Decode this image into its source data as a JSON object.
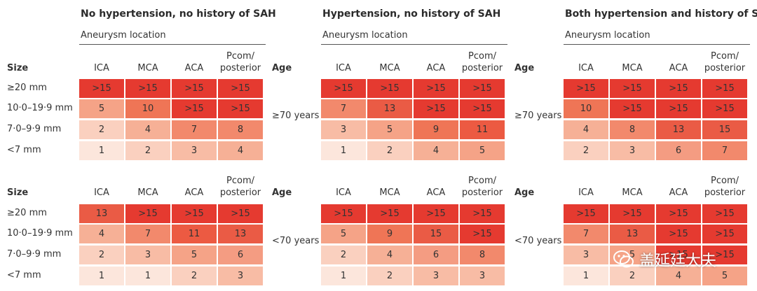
{
  "chart_data": {
    "type": "heatmap",
    "groups": [
      {
        "title": "No hypertension, no history of SAH",
        "subtitle": "Aneurysm location"
      },
      {
        "title": "Hypertension, no history of SAH",
        "subtitle": "Aneurysm location"
      },
      {
        "title": "Both hypertension and history of SAH",
        "subtitle": "Aneurysm location"
      }
    ],
    "columns": [
      "ICA",
      "MCA",
      "ACA",
      "Pcom/ posterior"
    ],
    "rows_header": "Size",
    "age_header": "Age",
    "sizes": [
      "≥20 mm",
      "10·0–19·9 mm",
      "7·0–9·9 mm",
      "<7 mm"
    ],
    "ages": [
      "≥70 years",
      "<70 years"
    ],
    "values": [
      [
        [
          [
            ">15",
            ">15",
            ">15",
            ">15"
          ],
          [
            "5",
            "10",
            ">15",
            ">15"
          ],
          [
            "2",
            "4",
            "7",
            "8"
          ],
          [
            "1",
            "2",
            "3",
            "4"
          ]
        ],
        [
          [
            ">15",
            ">15",
            ">15",
            ">15"
          ],
          [
            "7",
            "13",
            ">15",
            ">15"
          ],
          [
            "3",
            "5",
            "9",
            "11"
          ],
          [
            "1",
            "2",
            "4",
            "5"
          ]
        ],
        [
          [
            ">15",
            ">15",
            ">15",
            ">15"
          ],
          [
            "10",
            ">15",
            ">15",
            ">15"
          ],
          [
            "4",
            "8",
            "13",
            "15"
          ],
          [
            "2",
            "3",
            "6",
            "7"
          ]
        ]
      ],
      [
        [
          [
            "13",
            ">15",
            ">15",
            ">15"
          ],
          [
            "4",
            "7",
            "11",
            "13"
          ],
          [
            "2",
            "3",
            "5",
            "6"
          ],
          [
            "1",
            "1",
            "2",
            "3"
          ]
        ],
        [
          [
            ">15",
            ">15",
            ">15",
            ">15"
          ],
          [
            "5",
            "9",
            "15",
            ">15"
          ],
          [
            "2",
            "4",
            "6",
            "8"
          ],
          [
            "1",
            "2",
            "3",
            "3"
          ]
        ],
        [
          [
            ">15",
            ">15",
            ">15",
            ">15"
          ],
          [
            "7",
            "13",
            ">15",
            ">15"
          ],
          [
            "3",
            "5",
            ">15",
            ">15"
          ],
          [
            "1",
            "2",
            "4",
            "5"
          ]
        ]
      ]
    ],
    "colors": {
      "max": "#e53a30",
      "v13_15": "#ea5b45",
      "v11": "#ec5a42",
      "v9_10": "#ef7556",
      "v7_8": "#f2896c",
      "v6": "#f49c82",
      "v5": "#f5a387",
      "v4": "#f6b096",
      "v3": "#f8bca5",
      "v2": "#fad0bf",
      "v1": "#fce6dc"
    }
  },
  "watermark": {
    "text": "盖延廷大夫",
    "icon": "wechat-icon"
  }
}
